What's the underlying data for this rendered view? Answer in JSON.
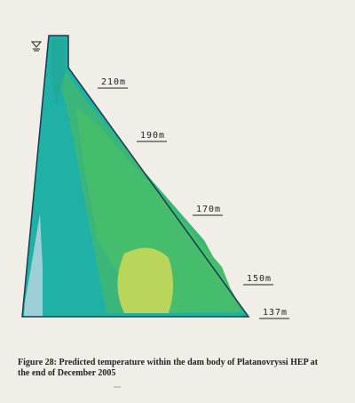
{
  "figure": {
    "elevation_labels": [
      "210m",
      "190m",
      "170m",
      "150m",
      "137m"
    ]
  },
  "caption": {
    "lines": [
      "Figure 28: Predicted temperature within the dam body of Platanovryssi HEP at",
      "the end of December 2005"
    ]
  }
}
